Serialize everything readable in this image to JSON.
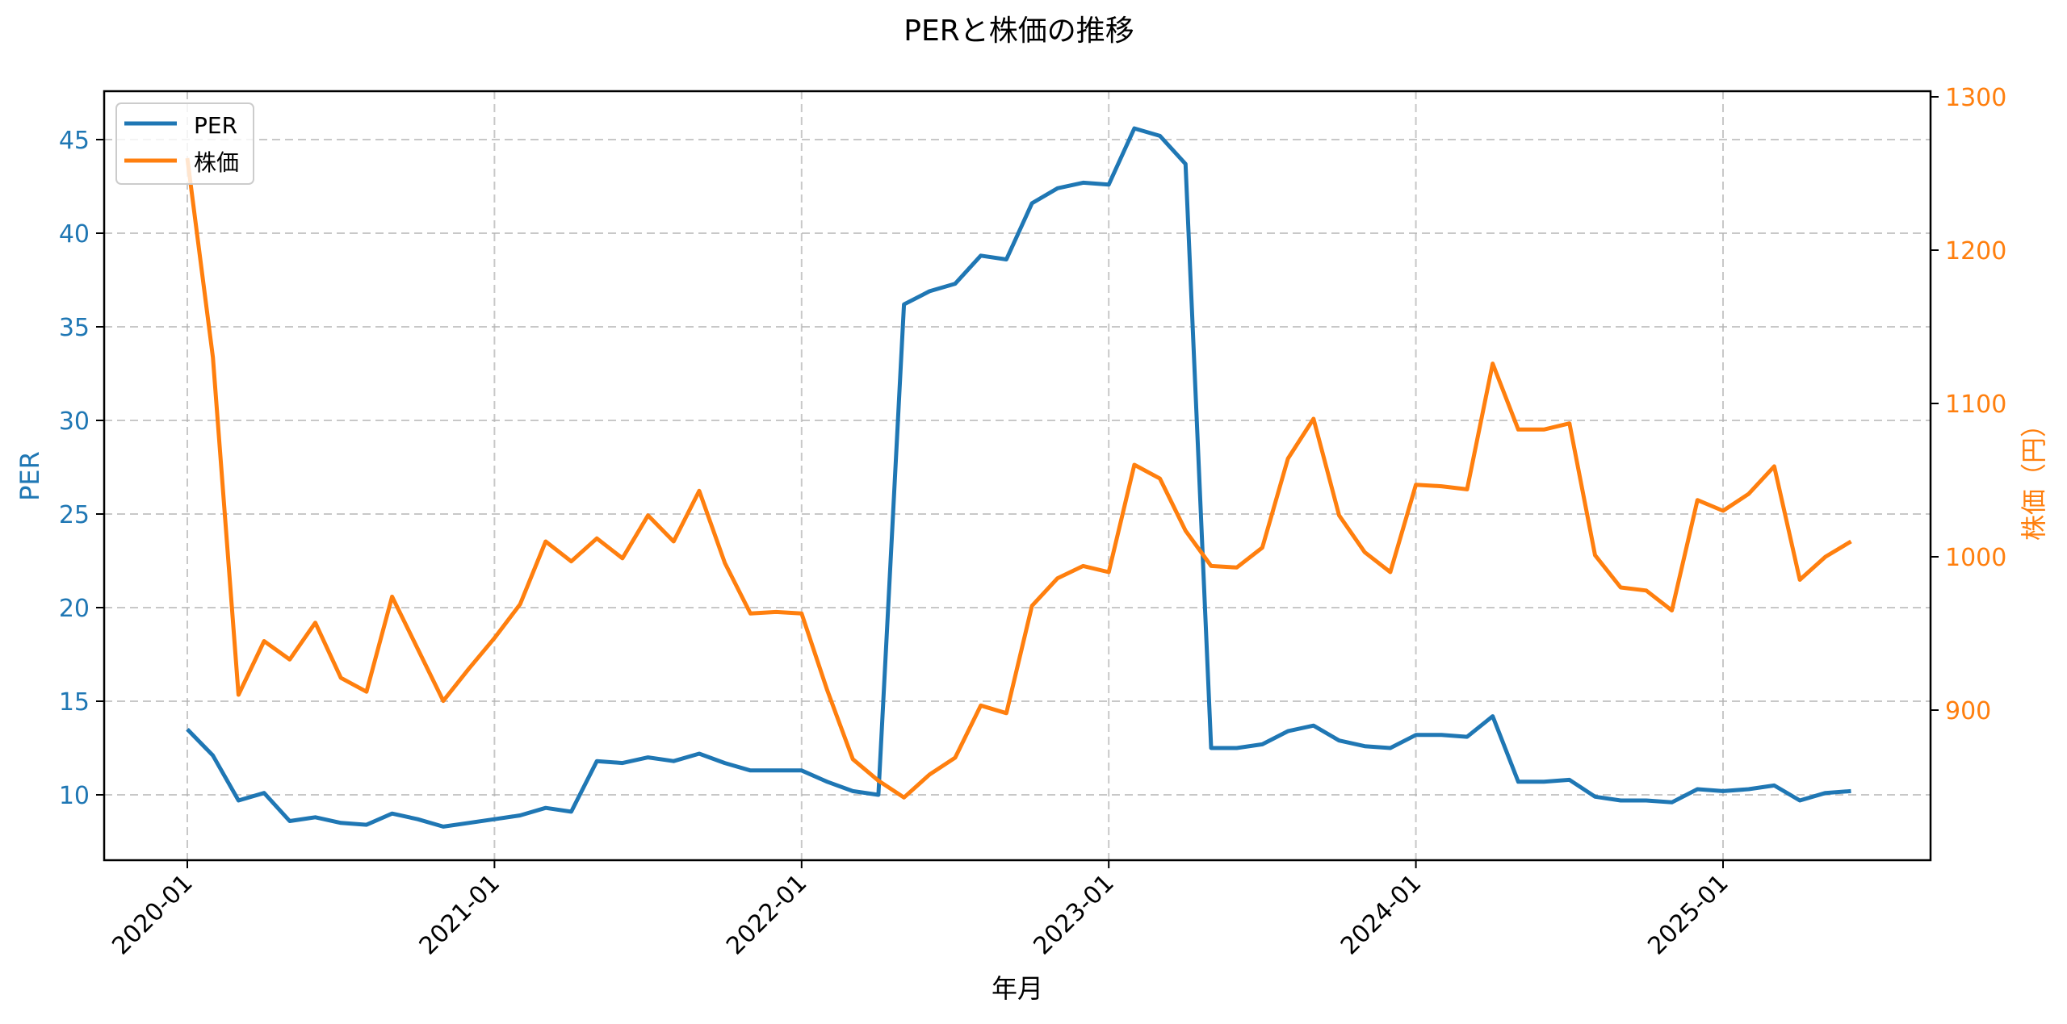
{
  "chart_data": {
    "type": "line",
    "title": "PERと株価の推移",
    "xlabel": "年月",
    "ylabel": "PER",
    "y2label": "株価（円）",
    "ylim": [
      6.5,
      47.5
    ],
    "y2lim": [
      820,
      1305
    ],
    "yticks": [
      10,
      15,
      20,
      25,
      30,
      35,
      40,
      45
    ],
    "y2ticks": [
      900,
      1000,
      1100,
      1200,
      1300
    ],
    "xticks": [
      "2020-01",
      "2021-01",
      "2022-01",
      "2023-01",
      "2024-01",
      "2025-01"
    ],
    "grid": true,
    "legend_position": "upper left",
    "colors": {
      "PER": "#1f77b4",
      "株価": "#ff7f0e"
    },
    "x": [
      "2020-01",
      "2020-02",
      "2020-03",
      "2020-04",
      "2020-05",
      "2020-06",
      "2020-07",
      "2020-08",
      "2020-09",
      "2020-10",
      "2020-11",
      "2020-12",
      "2021-01",
      "2021-02",
      "2021-03",
      "2021-04",
      "2021-05",
      "2021-06",
      "2021-07",
      "2021-08",
      "2021-09",
      "2021-10",
      "2021-11",
      "2021-12",
      "2022-01",
      "2022-02",
      "2022-03",
      "2022-04",
      "2022-05",
      "2022-06",
      "2022-07",
      "2022-08",
      "2022-09",
      "2022-10",
      "2022-11",
      "2022-12",
      "2023-01",
      "2023-02",
      "2023-03",
      "2023-04",
      "2023-05",
      "2023-06",
      "2023-07",
      "2023-08",
      "2023-09",
      "2023-10",
      "2023-11",
      "2023-12",
      "2024-01",
      "2024-02",
      "2024-03",
      "2024-04",
      "2024-05",
      "2024-06",
      "2024-07",
      "2024-08",
      "2024-09",
      "2024-10",
      "2024-11",
      "2024-12",
      "2025-01",
      "2025-02",
      "2025-03",
      "2025-04",
      "2025-05",
      "2025-06"
    ],
    "series": [
      {
        "name": "PER",
        "axis": "left",
        "values": [
          13.5,
          12.1,
          9.7,
          10.1,
          8.6,
          8.8,
          8.5,
          8.4,
          9.0,
          8.7,
          8.3,
          8.5,
          8.7,
          8.9,
          9.3,
          9.1,
          11.8,
          11.7,
          12.0,
          11.8,
          12.2,
          11.7,
          11.3,
          11.3,
          11.3,
          10.7,
          10.2,
          10.0,
          36.2,
          36.9,
          37.3,
          38.8,
          38.6,
          41.6,
          42.4,
          42.7,
          42.6,
          45.6,
          45.2,
          43.7,
          12.5,
          12.5,
          12.7,
          13.4,
          13.7,
          12.9,
          12.6,
          12.5,
          13.2,
          13.2,
          13.1,
          14.2,
          10.7,
          10.7,
          10.8,
          9.9,
          9.7,
          9.7,
          9.6,
          10.3,
          10.2,
          10.3,
          10.5,
          9.7,
          10.1,
          10.2
        ]
      },
      {
        "name": "株価",
        "axis": "right",
        "values": [
          1260,
          1130,
          910,
          945,
          933,
          957,
          921,
          912,
          974,
          940,
          906,
          927,
          947,
          969,
          1010,
          997,
          1012,
          999,
          1027,
          1010,
          1043,
          996,
          963,
          964,
          963,
          913,
          868,
          854,
          843,
          858,
          869,
          903,
          898,
          968,
          986,
          994,
          990,
          1060,
          1051,
          1017,
          994,
          993,
          1006,
          1064,
          1090,
          1027,
          1003,
          990,
          1047,
          1046,
          1044,
          1126,
          1083,
          1083,
          1087,
          1001,
          980,
          978,
          965,
          1037,
          1030,
          1041,
          1059,
          985,
          1000,
          1010
        ]
      }
    ]
  }
}
